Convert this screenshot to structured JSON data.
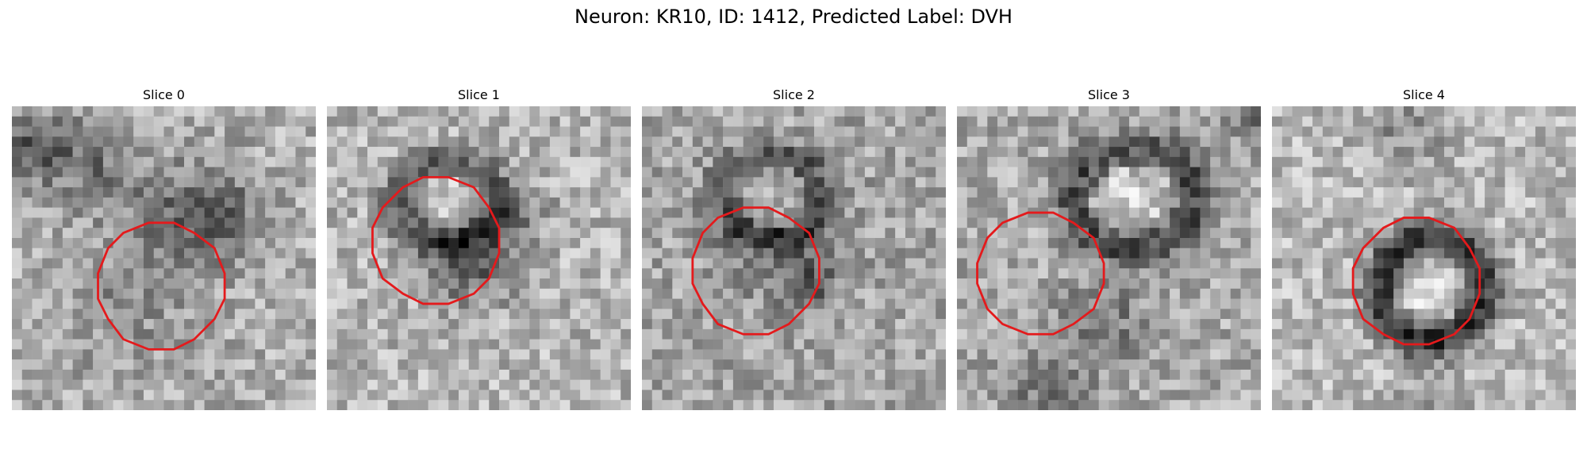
{
  "figure": {
    "title": "Neuron: KR10, ID: 1412, Predicted Label: DVH",
    "contour_color": "#e41a1c"
  },
  "slices": [
    {
      "title": "Slice 0"
    },
    {
      "title": "Slice 1"
    },
    {
      "title": "Slice 2"
    },
    {
      "title": "Slice 3"
    },
    {
      "title": "Slice 4"
    }
  ]
}
